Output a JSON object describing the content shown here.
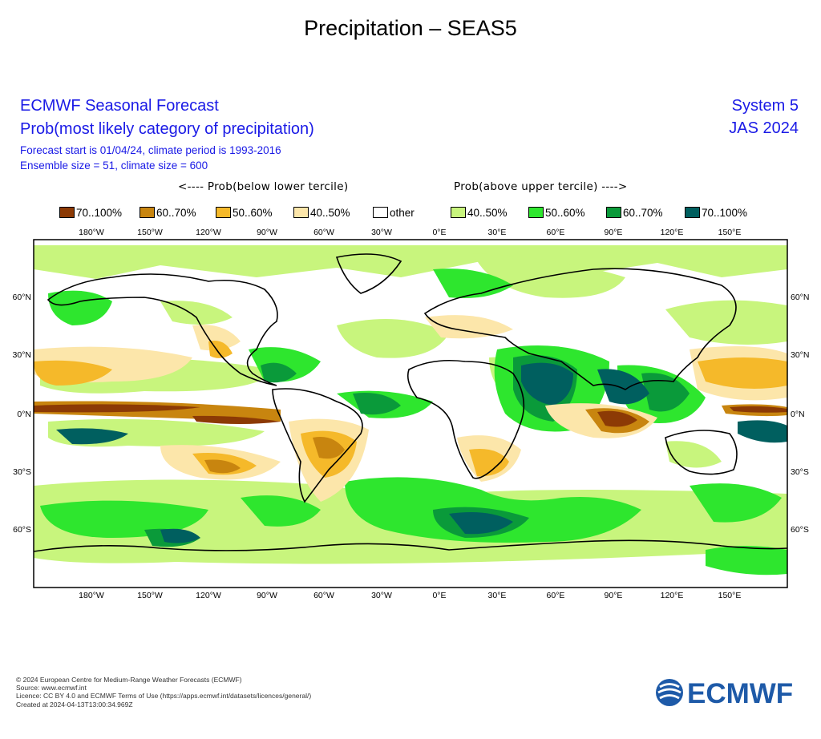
{
  "page_title": "Precipitation – SEAS5",
  "header": {
    "title": "ECMWF Seasonal Forecast",
    "subtitle": "Prob(most likely category of precipitation)",
    "forecast_line": "Forecast start is 01/04/24, climate period is 1993-2016",
    "ensemble_line": "Ensemble size = 51, climate size = 600",
    "system": "System 5",
    "period": "JAS 2024"
  },
  "legend": {
    "below_label": "<---- Prob(below lower tercile)",
    "above_label": "Prob(above upper tercile) ---->",
    "items": [
      {
        "label": "70..100%",
        "color": "#8c3a05"
      },
      {
        "label": "60..70%",
        "color": "#c8850f"
      },
      {
        "label": "50..60%",
        "color": "#f5b92a"
      },
      {
        "label": "40..50%",
        "color": "#fce6aa"
      },
      {
        "label": "other",
        "color": "#ffffff"
      },
      {
        "label": "40..50%",
        "color": "#c8f57d"
      },
      {
        "label": "50..60%",
        "color": "#2ee62e"
      },
      {
        "label": "60..70%",
        "color": "#0a9a3a"
      },
      {
        "label": "70..100%",
        "color": "#005f5f"
      }
    ]
  },
  "map": {
    "lon_labels": [
      "180°W",
      "150°W",
      "120°W",
      "90°W",
      "60°W",
      "30°W",
      "0°E",
      "30°E",
      "60°E",
      "90°E",
      "120°E",
      "150°E"
    ],
    "lat_labels": [
      "60°N",
      "30°N",
      "0°N",
      "30°S",
      "60°S"
    ]
  },
  "footer": {
    "line1": "© 2024 European Centre for Medium-Range Weather Forecasts (ECMWF)",
    "line2": "Source: www.ecmwf.int",
    "line3": "Licence: CC BY 4.0 and ECMWF Terms of Use (https://apps.ecmwf.int/datasets/licences/general/)",
    "line4": "Created at 2024-04-13T13:00:34.969Z"
  },
  "logo": {
    "text": "ECMWF",
    "color": "#1e5aa8"
  }
}
